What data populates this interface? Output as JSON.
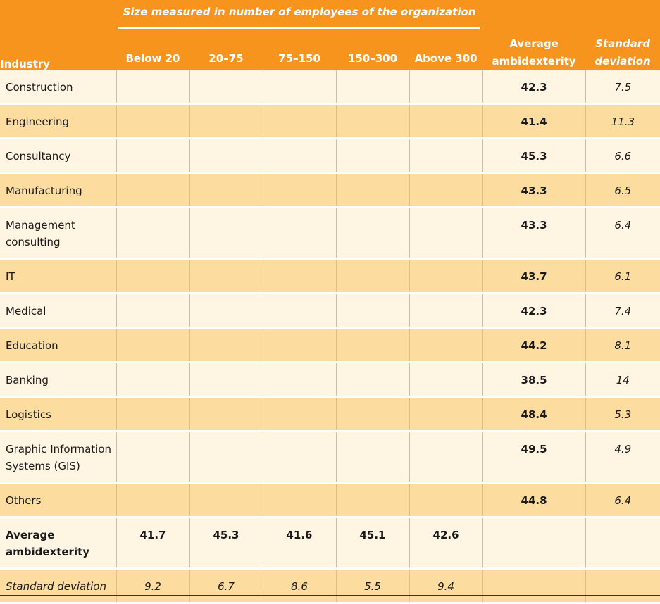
{
  "header": {
    "industry": "Industry",
    "size_title": "Size measured in number of employees of the organization",
    "sizes": [
      "Below 20",
      "20–75",
      "75–150",
      "150–300",
      "Above 300"
    ],
    "avg": "Average ambidexterity",
    "sd": "Standard deviation"
  },
  "rows": [
    {
      "industry": "Construction",
      "avg": "42.3",
      "sd": "7.5"
    },
    {
      "industry": "Engineering",
      "avg": "41.4",
      "sd": "11.3"
    },
    {
      "industry": "Consultancy",
      "avg": "45.3",
      "sd": "6.6"
    },
    {
      "industry": "Manufacturing",
      "avg": "43.3",
      "sd": "6.5"
    },
    {
      "industry": "Management consulting",
      "avg": "43.3",
      "sd": "6.4"
    },
    {
      "industry": "IT",
      "avg": "43.7",
      "sd": "6.1"
    },
    {
      "industry": "Medical",
      "avg": "42.3",
      "sd": "7.4"
    },
    {
      "industry": "Education",
      "avg": "44.2",
      "sd": "8.1"
    },
    {
      "industry": "Banking",
      "avg": "38.5",
      "sd": "14"
    },
    {
      "industry": "Logistics",
      "avg": "48.4",
      "sd": "5.3"
    },
    {
      "industry": "Graphic Information Systems (GIS)",
      "avg": "49.5",
      "sd": "4.9"
    },
    {
      "industry": "Others",
      "avg": "44.8",
      "sd": "6.4"
    }
  ],
  "summary": {
    "avg_label": "Average ambidexterity",
    "avg_values": [
      "41.7",
      "45.3",
      "41.6",
      "45.1",
      "42.6"
    ],
    "sd_label": "Standard deviation",
    "sd_values": [
      "9.2",
      "6.7",
      "8.6",
      "5.5",
      "9.4"
    ]
  },
  "colors": {
    "header": "#f7941d",
    "row_light": "#fff5e2",
    "row_dark": "#fddca0"
  }
}
